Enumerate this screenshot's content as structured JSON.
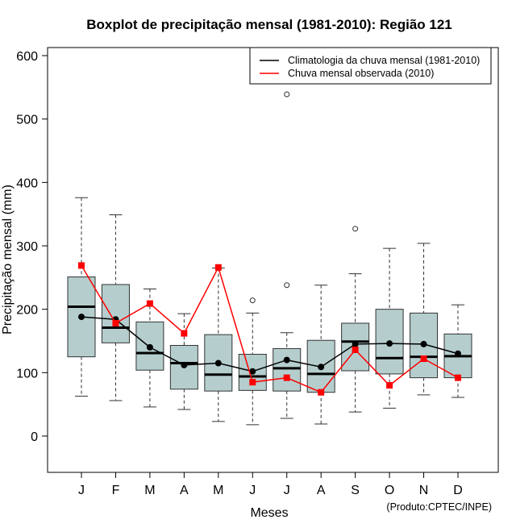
{
  "chart_data": {
    "type": "boxplot",
    "title": "Boxplot de precipitação mensal (1981-2010): Região 121",
    "xlabel": "Meses",
    "ylabel": "Precipitação mensal (mm)",
    "ylim": [
      -57,
      613
    ],
    "yticks": [
      0,
      100,
      200,
      300,
      400,
      500,
      600
    ],
    "categories": [
      "J",
      "F",
      "M",
      "A",
      "M",
      "J",
      "J",
      "A",
      "S",
      "O",
      "N",
      "D"
    ],
    "boxes": [
      {
        "min": 63,
        "q1": 125,
        "median": 204,
        "q3": 251,
        "max": 376,
        "outliers": []
      },
      {
        "min": 56,
        "q1": 147,
        "median": 171,
        "q3": 239,
        "max": 349,
        "outliers": []
      },
      {
        "min": 46,
        "q1": 104,
        "median": 131,
        "q3": 180,
        "max": 232,
        "outliers": []
      },
      {
        "min": 42,
        "q1": 74,
        "median": 115,
        "q3": 143,
        "max": 193,
        "outliers": []
      },
      {
        "min": 23,
        "q1": 71,
        "median": 97,
        "q3": 160,
        "max": 265,
        "outliers": []
      },
      {
        "min": 18,
        "q1": 72,
        "median": 94,
        "q3": 129,
        "max": 194,
        "outliers": [
          214
        ]
      },
      {
        "min": 28,
        "q1": 71,
        "median": 107,
        "q3": 138,
        "max": 163,
        "outliers": [
          238,
          539
        ]
      },
      {
        "min": 19,
        "q1": 69,
        "median": 98,
        "q3": 151,
        "max": 238,
        "outliers": []
      },
      {
        "min": 38,
        "q1": 103,
        "median": 149,
        "q3": 178,
        "max": 256,
        "outliers": [
          327
        ]
      },
      {
        "min": 44,
        "q1": 98,
        "median": 123,
        "q3": 200,
        "max": 296,
        "outliers": []
      },
      {
        "min": 65,
        "q1": 92,
        "median": 125,
        "q3": 194,
        "max": 304,
        "outliers": []
      },
      {
        "min": 61,
        "q1": 92,
        "median": 126,
        "q3": 161,
        "max": 207,
        "outliers": []
      }
    ],
    "series": [
      {
        "name": "Climatologia da chuva mensal (1981-2010)",
        "color": "#000000",
        "values": [
          188,
          184,
          140,
          112,
          115,
          102,
          120,
          109,
          145,
          146,
          145,
          130
        ]
      },
      {
        "name": "Chuva mensal observada (2010)",
        "color": "#ff0000",
        "values": [
          269,
          178,
          209,
          162,
          266,
          85,
          92,
          69,
          136,
          80,
          122,
          92
        ]
      }
    ],
    "legend_position": "top-right",
    "box_fill": "#b5cdcd",
    "footer": "(Produto:CPTEC/INPE)"
  }
}
